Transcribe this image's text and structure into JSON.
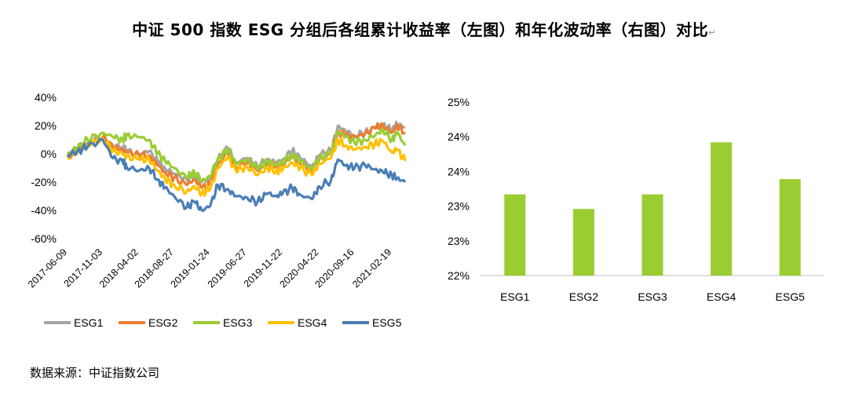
{
  "title": "中证 500 指数 ESG 分组后各组累计收益率（左图）和年化波动率（右图）对比",
  "title_mark": "↵",
  "source": "数据来源：中证指数公司",
  "colors": {
    "ESG1": "#a5a5a5",
    "ESG2": "#ed7d31",
    "ESG3": "#9acd32",
    "ESG4": "#ffc000",
    "ESG5": "#4a7eb5",
    "bar": "#9acd32",
    "axis": "#bfbfbf"
  },
  "chart_data": [
    {
      "type": "line",
      "title": "",
      "ylim": [
        -0.6,
        0.4
      ],
      "yticks": [
        {
          "value": 0.4,
          "label": "40%"
        },
        {
          "value": 0.2,
          "label": "20%"
        },
        {
          "value": 0.0,
          "label": "0%"
        },
        {
          "value": -0.2,
          "label": "-20%"
        },
        {
          "value": -0.4,
          "label": "-40%"
        },
        {
          "value": -0.6,
          "label": "-60%"
        }
      ],
      "xticks": [
        "2017-06-09",
        "2017-11-03",
        "2018-04-02",
        "2018-08-27",
        "2019-01-24",
        "2019-06-27",
        "2019-11-22",
        "2020-04-22",
        "2020-09-16",
        "2021-02-19"
      ],
      "x": [
        "2017-06-09",
        "2017-07-20",
        "2017-09-01",
        "2017-11-03",
        "2017-12-15",
        "2018-01-26",
        "2018-02-09",
        "2018-04-02",
        "2018-05-15",
        "2018-06-20",
        "2018-07-20",
        "2018-08-27",
        "2018-10-18",
        "2018-11-20",
        "2018-12-20",
        "2019-01-24",
        "2019-02-25",
        "2019-04-08",
        "2019-05-10",
        "2019-06-27",
        "2019-08-09",
        "2019-09-20",
        "2019-10-25",
        "2019-11-22",
        "2019-12-31",
        "2020-02-03",
        "2020-03-23",
        "2020-04-22",
        "2020-06-10",
        "2020-07-09",
        "2020-08-10",
        "2020-09-16",
        "2020-10-30",
        "2020-12-10",
        "2021-01-12",
        "2021-02-19",
        "2021-03-12",
        "2021-04-15"
      ],
      "series": [
        {
          "name": "ESG1",
          "values": [
            -0.01,
            0.03,
            0.08,
            0.12,
            0.06,
            0.04,
            0.02,
            0.0,
            0.02,
            -0.06,
            -0.1,
            -0.14,
            -0.18,
            -0.15,
            -0.2,
            -0.18,
            -0.04,
            0.04,
            -0.06,
            -0.03,
            -0.09,
            -0.04,
            -0.06,
            -0.04,
            0.02,
            -0.03,
            -0.09,
            -0.01,
            0.02,
            0.2,
            0.16,
            0.13,
            0.15,
            0.19,
            0.21,
            0.16,
            0.21,
            0.19
          ]
        },
        {
          "name": "ESG2",
          "values": [
            -0.01,
            0.02,
            0.07,
            0.12,
            0.04,
            0.03,
            0.01,
            -0.01,
            -0.01,
            -0.08,
            -0.13,
            -0.17,
            -0.22,
            -0.18,
            -0.24,
            -0.22,
            -0.07,
            0.01,
            -0.09,
            -0.06,
            -0.12,
            -0.07,
            -0.09,
            -0.08,
            -0.02,
            -0.07,
            -0.12,
            -0.04,
            0.0,
            0.16,
            0.13,
            0.12,
            0.14,
            0.18,
            0.2,
            0.15,
            0.2,
            0.15
          ]
        },
        {
          "name": "ESG3",
          "values": [
            0.0,
            0.04,
            0.1,
            0.15,
            0.12,
            0.1,
            0.13,
            0.12,
            0.1,
            0.0,
            -0.05,
            -0.1,
            -0.17,
            -0.13,
            -0.19,
            -0.16,
            -0.03,
            0.03,
            -0.07,
            -0.04,
            -0.11,
            -0.05,
            -0.08,
            -0.06,
            0.0,
            -0.05,
            -0.11,
            -0.03,
            0.0,
            0.16,
            0.12,
            0.08,
            0.1,
            0.13,
            0.17,
            0.1,
            0.15,
            0.06
          ]
        },
        {
          "name": "ESG4",
          "values": [
            -0.01,
            0.01,
            0.06,
            0.11,
            0.02,
            0.0,
            -0.02,
            -0.04,
            -0.04,
            -0.12,
            -0.18,
            -0.22,
            -0.27,
            -0.23,
            -0.28,
            -0.25,
            -0.1,
            -0.02,
            -0.12,
            -0.09,
            -0.15,
            -0.1,
            -0.12,
            -0.11,
            -0.06,
            -0.1,
            -0.15,
            -0.07,
            -0.03,
            0.1,
            0.06,
            0.03,
            0.05,
            0.07,
            0.09,
            0.01,
            0.03,
            -0.05
          ]
        },
        {
          "name": "ESG5",
          "values": [
            -0.01,
            0.02,
            0.05,
            0.1,
            -0.03,
            -0.06,
            -0.09,
            -0.12,
            -0.1,
            -0.18,
            -0.24,
            -0.3,
            -0.38,
            -0.34,
            -0.4,
            -0.37,
            -0.22,
            -0.25,
            -0.3,
            -0.31,
            -0.34,
            -0.28,
            -0.3,
            -0.28,
            -0.24,
            -0.29,
            -0.32,
            -0.23,
            -0.19,
            -0.04,
            -0.08,
            -0.1,
            -0.08,
            -0.11,
            -0.13,
            -0.15,
            -0.17,
            -0.2
          ]
        }
      ],
      "legend": "bottom"
    },
    {
      "type": "bar",
      "title": "",
      "categories": [
        "ESG1",
        "ESG2",
        "ESG3",
        "ESG4",
        "ESG5"
      ],
      "values": [
        0.2317,
        0.2296,
        0.2317,
        0.2392,
        0.2339
      ],
      "ylim": [
        0.22,
        0.245
      ],
      "yticks": [
        {
          "value": 0.22,
          "label": "22%"
        },
        {
          "value": 0.225,
          "label": "23%"
        },
        {
          "value": 0.23,
          "label": "23%"
        },
        {
          "value": 0.235,
          "label": "24%"
        },
        {
          "value": 0.24,
          "label": "24%"
        },
        {
          "value": 0.245,
          "label": "25%"
        }
      ],
      "legend": "none"
    }
  ]
}
